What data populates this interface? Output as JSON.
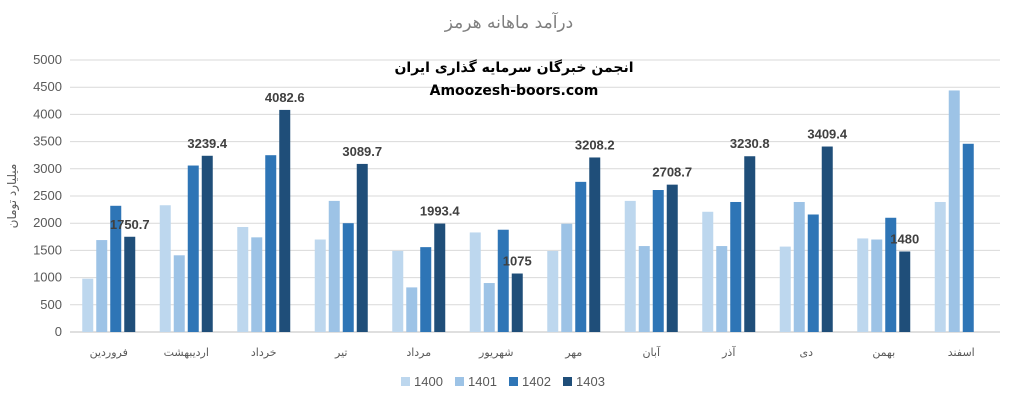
{
  "chart_data": {
    "type": "bar",
    "title": "درآمد ماهانه هرمز",
    "watermark_line1": "انجمن خبرگان سرمایه گذاری ایران",
    "watermark_line2": "Amoozesh-boors.com",
    "ylabel": "میلیارد تومان",
    "ylim": [
      0,
      5000
    ],
    "yticks": [
      0,
      500,
      1000,
      1500,
      2000,
      2500,
      3000,
      3500,
      4000,
      4500,
      5000
    ],
    "grid": true,
    "legend_position": "bottom",
    "categories": [
      "فروردین",
      "اردیبهشت",
      "خرداد",
      "تیر",
      "مرداد",
      "شهریور",
      "مهر",
      "آبان",
      "آذر",
      "دی",
      "بهمن",
      "اسفند"
    ],
    "series": [
      {
        "name": "1400",
        "color": "#bdd7ee",
        "values": [
          980,
          2330,
          1930,
          1700,
          1490,
          1830,
          1490,
          2410,
          2210,
          1570,
          1720,
          2390
        ]
      },
      {
        "name": "1401",
        "color": "#9dc3e6",
        "values": [
          1690,
          1410,
          1740,
          2410,
          820,
          900,
          1990,
          1580,
          1580,
          2390,
          1700,
          4440
        ]
      },
      {
        "name": "1402",
        "color": "#2e75b6",
        "values": [
          2320,
          3060,
          3250,
          2000,
          1560,
          1880,
          2760,
          2610,
          2390,
          2160,
          2100,
          3460
        ]
      },
      {
        "name": "1403",
        "color": "#1f4e79",
        "values": [
          1750.7,
          3239.4,
          4082.6,
          3089.7,
          1993.4,
          1075,
          3208.2,
          2708.7,
          3230.8,
          3409.4,
          1480,
          null
        ]
      }
    ],
    "data_labels": [
      "1750.7",
      "3239.4",
      "4082.6",
      "3089.7",
      "1993.4",
      "1075",
      "3208.2",
      "2708.7",
      "3230.8",
      "3409.4",
      "1480",
      ""
    ]
  }
}
